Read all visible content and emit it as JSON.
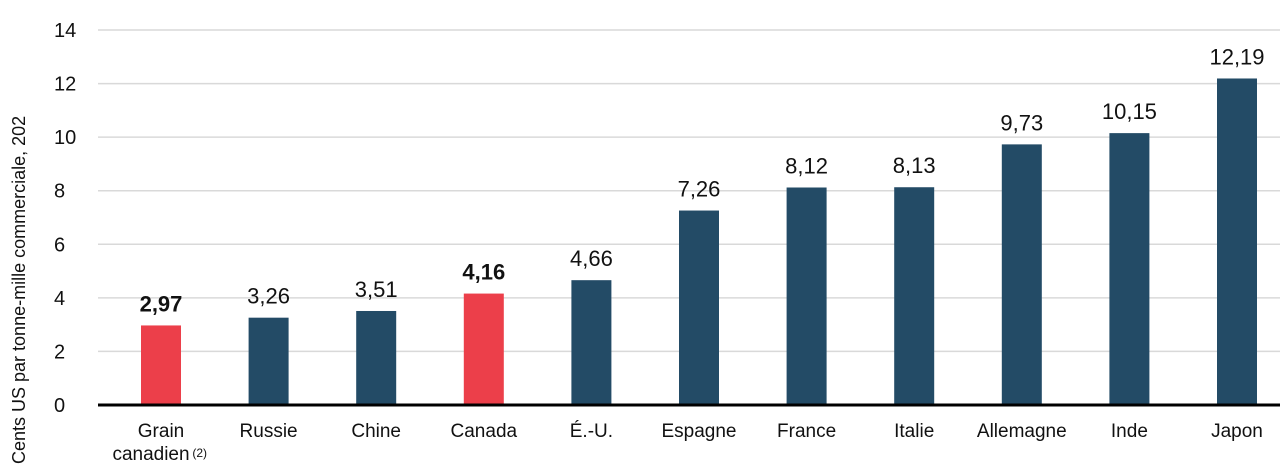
{
  "colors": {
    "bar": "#234b66",
    "highlight": "#ec3f4a",
    "grid": "#d9d9d9",
    "axis": "#000000"
  },
  "chart_data": {
    "type": "bar",
    "ylabel": "Cents US par tonne-mille commerciale, 202",
    "ylim": [
      0,
      14
    ],
    "yticks": [
      "0",
      "2",
      "4",
      "6",
      "8",
      "10",
      "12",
      "14"
    ],
    "grid": true,
    "categories": [
      "Grain canadien",
      "Russie",
      "Chine",
      "Canada",
      "É.-U.",
      "Espagne",
      "France",
      "Italie",
      "Allemagne",
      "Inde",
      "Japon"
    ],
    "category_lines": [
      [
        "Grain",
        "canadien"
      ],
      [
        "Russie"
      ],
      [
        "Chine"
      ],
      [
        "Canada"
      ],
      [
        "É.-U."
      ],
      [
        "Espagne"
      ],
      [
        "France"
      ],
      [
        "Italie"
      ],
      [
        "Allemagne"
      ],
      [
        "Inde"
      ],
      [
        "Japon"
      ]
    ],
    "category_notes": [
      "(2)",
      "",
      "",
      "",
      "",
      "",
      "",
      "",
      "",
      "",
      ""
    ],
    "values": [
      2.97,
      3.26,
      3.51,
      4.16,
      4.66,
      7.26,
      8.12,
      8.13,
      9.73,
      10.15,
      12.19
    ],
    "value_labels": [
      "2,97",
      "3,26",
      "3,51",
      "4,16",
      "4,66",
      "7,26",
      "8,12",
      "8,13",
      "9,73",
      "10,15",
      "12,19"
    ],
    "highlighted": [
      "Grain canadien",
      "Canada"
    ]
  }
}
